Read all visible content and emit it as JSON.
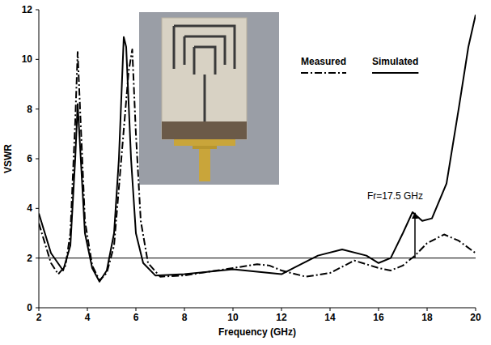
{
  "chart_data": {
    "type": "line",
    "x_label": "Frequency (GHz)",
    "y_label": "VSWR",
    "xlim": [
      2,
      20
    ],
    "xticks": [
      2,
      4,
      6,
      8,
      10,
      12,
      14,
      16,
      18,
      20
    ],
    "ylim": [
      0,
      12
    ],
    "yticks": [
      0,
      2,
      4,
      6,
      8,
      10,
      12
    ],
    "grid": false,
    "legend": "top-right",
    "reference_line": 2,
    "series": [
      {
        "name": "Measured",
        "color": "#000000",
        "line_style": "dashdot",
        "x": [
          2,
          2.5,
          2.8,
          3.1,
          3.3,
          3.5,
          3.6,
          3.7,
          3.9,
          4.2,
          4.5,
          4.8,
          5.1,
          5.4,
          5.7,
          5.85,
          6.0,
          6.2,
          6.5,
          7,
          8,
          9,
          10,
          11,
          11.5,
          12,
          13,
          14,
          15,
          16,
          16.5,
          17,
          17.5,
          18,
          18.7,
          19.3,
          20
        ],
        "values": [
          3.4,
          1.8,
          1.35,
          1.7,
          3.0,
          7.5,
          10.3,
          8.0,
          3.5,
          1.7,
          1.1,
          1.4,
          2.5,
          6.0,
          9.5,
          10.4,
          7.0,
          3.5,
          1.8,
          1.25,
          1.3,
          1.45,
          1.6,
          1.75,
          1.7,
          1.5,
          1.25,
          1.4,
          1.9,
          1.6,
          1.5,
          1.7,
          2.1,
          2.6,
          2.95,
          2.7,
          2.2
        ]
      },
      {
        "name": "Simulated",
        "color": "#000000",
        "line_style": "solid",
        "x": [
          2,
          2.5,
          3.0,
          3.3,
          3.5,
          3.6,
          3.7,
          3.9,
          4.2,
          4.5,
          4.8,
          5.1,
          5.3,
          5.5,
          5.6,
          5.8,
          6.0,
          6.3,
          6.8,
          8,
          9,
          10,
          11,
          12,
          12.5,
          13.5,
          14.5,
          15.5,
          16,
          16.5,
          17,
          17.4,
          17.8,
          18.2,
          18.8,
          19.3,
          19.7,
          20
        ],
        "values": [
          3.8,
          2.2,
          1.5,
          2.5,
          6.0,
          8.2,
          6.5,
          3.0,
          1.6,
          1.05,
          1.5,
          3.0,
          6.0,
          10.9,
          10.5,
          6.0,
          3.0,
          1.8,
          1.3,
          1.35,
          1.45,
          1.55,
          1.45,
          1.35,
          1.6,
          2.1,
          2.35,
          2.1,
          1.8,
          2.0,
          3.0,
          3.85,
          3.5,
          3.6,
          5.0,
          8.0,
          10.5,
          11.8
        ]
      }
    ],
    "annotations": [
      {
        "text": "Fr=17.5 GHz",
        "x": 17.5,
        "y_from": 2,
        "y_to": 3.85
      }
    ]
  }
}
